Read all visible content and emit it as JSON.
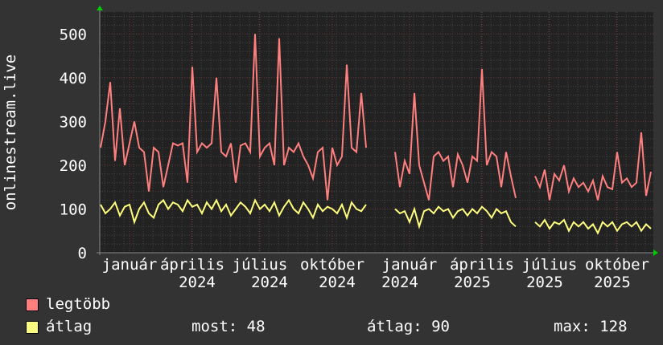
{
  "chart_data": {
    "type": "line",
    "ylabel": "onlinestream.live",
    "ylim": [
      0,
      550
    ],
    "yticks": [
      0,
      100,
      200,
      300,
      400,
      500
    ],
    "grid": true,
    "x_labels": [
      {
        "text": "január",
        "pos": 6
      },
      {
        "text": "április",
        "pos": 19
      },
      {
        "text": "július",
        "pos": 33
      },
      {
        "text": "október",
        "pos": 48
      },
      {
        "text": "január",
        "pos": 64
      },
      {
        "text": "április",
        "pos": 79
      },
      {
        "text": "július",
        "pos": 93
      },
      {
        "text": "október",
        "pos": 107
      },
      {
        "text": "2024",
        "pos": 20
      },
      {
        "text": "2024",
        "pos": 35
      },
      {
        "text": "2024",
        "pos": 49
      },
      {
        "text": "2024",
        "pos": 62
      },
      {
        "text": "2025",
        "pos": 77
      },
      {
        "text": "2025",
        "pos": 92
      },
      {
        "text": "2025",
        "pos": 106
      }
    ],
    "series": [
      {
        "name": "legtöbb",
        "color": "#ff7f7f",
        "values": [
          240,
          300,
          390,
          210,
          330,
          200,
          250,
          300,
          240,
          230,
          140,
          240,
          230,
          150,
          200,
          250,
          245,
          250,
          160,
          425,
          230,
          250,
          240,
          250,
          400,
          230,
          220,
          250,
          160,
          245,
          250,
          230,
          500,
          220,
          240,
          250,
          200,
          490,
          200,
          240,
          230,
          250,
          220,
          200,
          170,
          230,
          240,
          120,
          240,
          200,
          220,
          430,
          240,
          230,
          365,
          240,
          null,
          null,
          null,
          null,
          null,
          230,
          150,
          210,
          180,
          365,
          200,
          160,
          120,
          220,
          230,
          210,
          220,
          150,
          225,
          200,
          160,
          220,
          210,
          420,
          200,
          230,
          220,
          150,
          230,
          175,
          125,
          null,
          null,
          null,
          175,
          150,
          190,
          120,
          180,
          165,
          200,
          140,
          170,
          150,
          160,
          140,
          165,
          120,
          175,
          150,
          145,
          230,
          160,
          170,
          150,
          160,
          275,
          130,
          185
        ]
      },
      {
        "name": "átlag",
        "color": "#ffff7f",
        "values": [
          110,
          90,
          100,
          115,
          85,
          105,
          110,
          70,
          100,
          115,
          90,
          80,
          110,
          120,
          100,
          115,
          110,
          95,
          120,
          105,
          110,
          90,
          115,
          100,
          120,
          95,
          110,
          85,
          100,
          115,
          105,
          90,
          120,
          100,
          110,
          95,
          115,
          85,
          105,
          120,
          100,
          90,
          115,
          100,
          80,
          110,
          95,
          105,
          100,
          90,
          110,
          80,
          115,
          100,
          95,
          110,
          null,
          null,
          null,
          null,
          null,
          100,
          90,
          95,
          70,
          100,
          60,
          95,
          100,
          90,
          105,
          95,
          100,
          80,
          95,
          100,
          85,
          100,
          90,
          105,
          95,
          80,
          100,
          90,
          95,
          70,
          60,
          null,
          null,
          null,
          70,
          60,
          75,
          55,
          70,
          65,
          75,
          50,
          70,
          60,
          70,
          55,
          65,
          45,
          70,
          60,
          70,
          50,
          65,
          70,
          60,
          70,
          50,
          65,
          55
        ]
      }
    ]
  },
  "legend": {
    "max_label": "legtöbb",
    "avg_label": "átlag",
    "now": "most: 48",
    "average": "átlag: 90",
    "maximum": "max: 128"
  }
}
